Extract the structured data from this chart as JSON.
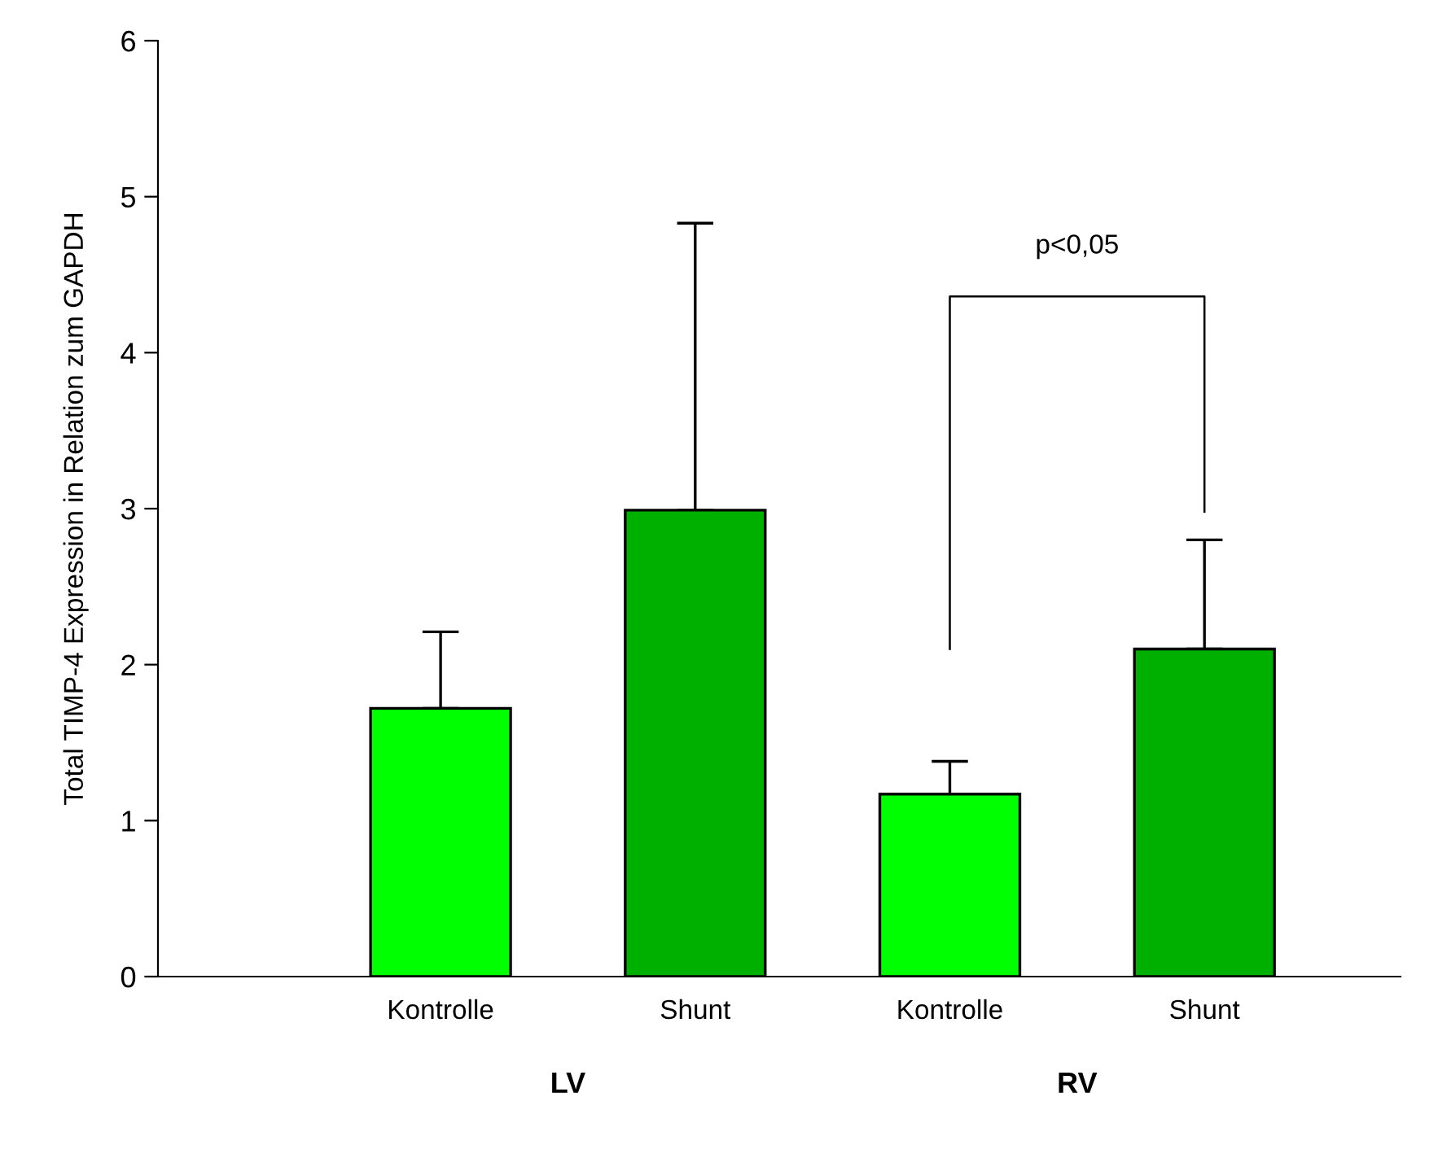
{
  "chart_data": {
    "type": "bar",
    "ylabel": "Total TIMP-4 Expression in Relation zum GAPDH",
    "categories": [
      "Kontrolle",
      "Shunt",
      "Kontrolle",
      "Shunt"
    ],
    "values": [
      1.72,
      2.99,
      1.17,
      2.1
    ],
    "errors": [
      [
        1.72,
        2.21
      ],
      [
        2.99,
        4.83
      ],
      [
        1.17,
        1.38
      ],
      [
        2.1,
        2.8
      ]
    ],
    "colors": [
      "#00ff00",
      "#00b000",
      "#00ff00",
      "#00b000"
    ],
    "ylim": [
      0,
      6
    ],
    "yticks": [
      0,
      1,
      2,
      3,
      4,
      5,
      6
    ],
    "grid": false,
    "legend": false,
    "annotations": [
      "LV",
      "RV",
      "p<0,05"
    ]
  }
}
